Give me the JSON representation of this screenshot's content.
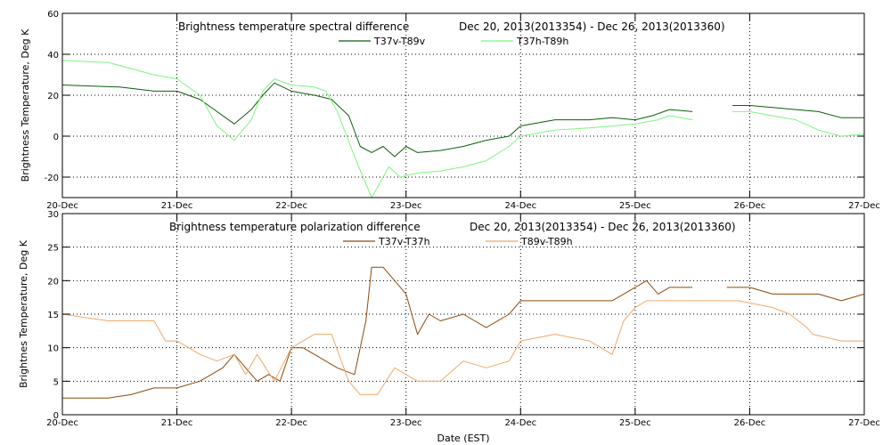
{
  "x_axis_label": "Date (EST)",
  "chart_data": [
    {
      "type": "line",
      "title": "Brightness temperature spectral difference",
      "date_range_label": "Dec 20, 2013(2013354)  -  Dec 26, 2013(2013360)",
      "ylabel": "Brightness Temperature, Deg K",
      "xlim": [
        "20-Dec",
        "27-Dec"
      ],
      "ylim": [
        -30,
        60
      ],
      "x_ticks": [
        "20-Dec",
        "21-Dec",
        "22-Dec",
        "23-Dec",
        "24-Dec",
        "25-Dec",
        "26-Dec",
        "27-Dec"
      ],
      "y_ticks": [
        "-20",
        "0",
        "20",
        "40",
        "60"
      ],
      "grid": true,
      "legend_position": "top-center",
      "series": [
        {
          "name": "T37v-T89v",
          "color": "#0b5e0b",
          "segments": [
            [
              [
                0,
                25
              ],
              [
                0.5,
                24
              ],
              [
                0.8,
                22
              ],
              [
                1.0,
                22
              ],
              [
                1.2,
                18
              ],
              [
                1.35,
                12
              ],
              [
                1.5,
                6
              ],
              [
                1.65,
                13
              ],
              [
                1.75,
                20
              ],
              [
                1.85,
                26
              ],
              [
                2.0,
                22
              ],
              [
                2.1,
                21
              ],
              [
                2.2,
                20
              ],
              [
                2.35,
                18
              ],
              [
                2.5,
                10
              ],
              [
                2.6,
                -5
              ],
              [
                2.7,
                -8
              ],
              [
                2.8,
                -5
              ],
              [
                2.9,
                -10
              ],
              [
                3.0,
                -5
              ],
              [
                3.1,
                -8
              ],
              [
                3.3,
                -7
              ],
              [
                3.5,
                -5
              ],
              [
                3.7,
                -2
              ],
              [
                3.9,
                0
              ],
              [
                4.0,
                5
              ],
              [
                4.3,
                8
              ],
              [
                4.6,
                8
              ],
              [
                4.8,
                9
              ],
              [
                5.0,
                8
              ],
              [
                5.15,
                10
              ],
              [
                5.3,
                13
              ],
              [
                5.5,
                12
              ]
            ],
            [
              [
                5.85,
                15
              ],
              [
                6.0,
                15
              ],
              [
                6.2,
                14
              ],
              [
                6.4,
                13
              ],
              [
                6.6,
                12
              ],
              [
                6.8,
                9
              ],
              [
                7.0,
                9
              ]
            ]
          ]
        },
        {
          "name": "T37h-T89h",
          "color": "#7ef57e",
          "segments": [
            [
              [
                0,
                37
              ],
              [
                0.4,
                36
              ],
              [
                0.8,
                30
              ],
              [
                1.0,
                28
              ],
              [
                1.2,
                20
              ],
              [
                1.35,
                5
              ],
              [
                1.5,
                -2
              ],
              [
                1.65,
                8
              ],
              [
                1.75,
                22
              ],
              [
                1.85,
                28
              ],
              [
                2.0,
                25
              ],
              [
                2.2,
                24
              ],
              [
                2.3,
                22
              ],
              [
                2.4,
                12
              ],
              [
                2.55,
                -10
              ],
              [
                2.7,
                -30
              ],
              [
                2.85,
                -15
              ],
              [
                2.95,
                -20
              ],
              [
                3.1,
                -18
              ],
              [
                3.3,
                -17
              ],
              [
                3.5,
                -15
              ],
              [
                3.7,
                -12
              ],
              [
                3.9,
                -5
              ],
              [
                4.0,
                0
              ],
              [
                4.3,
                3
              ],
              [
                4.6,
                4
              ],
              [
                4.8,
                5
              ],
              [
                5.0,
                6
              ],
              [
                5.2,
                8
              ],
              [
                5.3,
                10
              ],
              [
                5.5,
                8
              ]
            ],
            [
              [
                5.85,
                12
              ],
              [
                6.0,
                12
              ],
              [
                6.2,
                10
              ],
              [
                6.4,
                8
              ],
              [
                6.6,
                3
              ],
              [
                6.8,
                0
              ],
              [
                7.0,
                1
              ]
            ]
          ]
        }
      ]
    },
    {
      "type": "line",
      "title": "Brightness temperature polarization difference",
      "date_range_label": "Dec 20, 2013(2013354)  -  Dec 26, 2013(2013360)",
      "ylabel": "Brightnes Temperature, Deg K",
      "xlim": [
        "20-Dec",
        "27-Dec"
      ],
      "ylim": [
        0,
        30
      ],
      "x_ticks": [
        "20-Dec",
        "21-Dec",
        "22-Dec",
        "23-Dec",
        "24-Dec",
        "25-Dec",
        "26-Dec",
        "27-Dec"
      ],
      "y_ticks": [
        "0",
        "5",
        "10",
        "15",
        "20",
        "25",
        "30"
      ],
      "grid": true,
      "legend_position": "top-center",
      "series": [
        {
          "name": "T37v-T37h",
          "color": "#8b4a0a",
          "segments": [
            [
              [
                0,
                2.5
              ],
              [
                0.4,
                2.5
              ],
              [
                0.6,
                3
              ],
              [
                0.8,
                4
              ],
              [
                1.0,
                4
              ],
              [
                1.2,
                5
              ],
              [
                1.4,
                7
              ],
              [
                1.5,
                9
              ],
              [
                1.6,
                7
              ],
              [
                1.7,
                5
              ],
              [
                1.8,
                6
              ],
              [
                1.9,
                5
              ],
              [
                2.0,
                10
              ],
              [
                2.1,
                10
              ],
              [
                2.2,
                9
              ],
              [
                2.4,
                7
              ],
              [
                2.55,
                6
              ],
              [
                2.6,
                10
              ],
              [
                2.65,
                14
              ],
              [
                2.7,
                22
              ],
              [
                2.8,
                22
              ],
              [
                2.9,
                20
              ],
              [
                3.0,
                18
              ],
              [
                3.1,
                12
              ],
              [
                3.2,
                15
              ],
              [
                3.3,
                14
              ],
              [
                3.5,
                15
              ],
              [
                3.7,
                13
              ],
              [
                3.9,
                15
              ],
              [
                4.0,
                17
              ],
              [
                4.3,
                17
              ],
              [
                4.6,
                17
              ],
              [
                4.8,
                17
              ],
              [
                5.0,
                19
              ],
              [
                5.1,
                20
              ],
              [
                5.2,
                18
              ],
              [
                5.3,
                19
              ],
              [
                5.5,
                19
              ]
            ],
            [
              [
                5.8,
                19
              ],
              [
                6.0,
                19
              ],
              [
                6.2,
                18
              ],
              [
                6.4,
                18
              ],
              [
                6.6,
                18
              ],
              [
                6.8,
                17
              ],
              [
                7.0,
                18
              ]
            ]
          ]
        },
        {
          "name": "T89v-T89h",
          "color": "#f0a868",
          "segments": [
            [
              [
                0,
                15
              ],
              [
                0.4,
                14
              ],
              [
                0.8,
                14
              ],
              [
                0.9,
                11
              ],
              [
                1.0,
                11
              ],
              [
                1.2,
                9
              ],
              [
                1.35,
                8
              ],
              [
                1.5,
                9
              ],
              [
                1.6,
                6
              ],
              [
                1.7,
                9
              ],
              [
                1.85,
                5
              ],
              [
                2.0,
                10
              ],
              [
                2.2,
                12
              ],
              [
                2.35,
                12
              ],
              [
                2.5,
                5
              ],
              [
                2.6,
                3
              ],
              [
                2.75,
                3
              ],
              [
                2.9,
                7
              ],
              [
                3.0,
                6
              ],
              [
                3.1,
                5
              ],
              [
                3.3,
                5
              ],
              [
                3.5,
                8
              ],
              [
                3.7,
                7
              ],
              [
                3.9,
                8
              ],
              [
                4.0,
                11
              ],
              [
                4.3,
                12
              ],
              [
                4.6,
                11
              ],
              [
                4.8,
                9
              ],
              [
                4.9,
                14
              ],
              [
                5.0,
                16
              ],
              [
                5.1,
                17
              ],
              [
                5.3,
                17
              ],
              [
                5.6,
                17
              ],
              [
                5.9,
                17
              ],
              [
                6.2,
                16
              ],
              [
                6.35,
                15
              ],
              [
                6.5,
                13
              ],
              [
                6.55,
                12
              ],
              [
                6.8,
                11
              ],
              [
                7.0,
                11
              ]
            ]
          ]
        }
      ]
    }
  ]
}
